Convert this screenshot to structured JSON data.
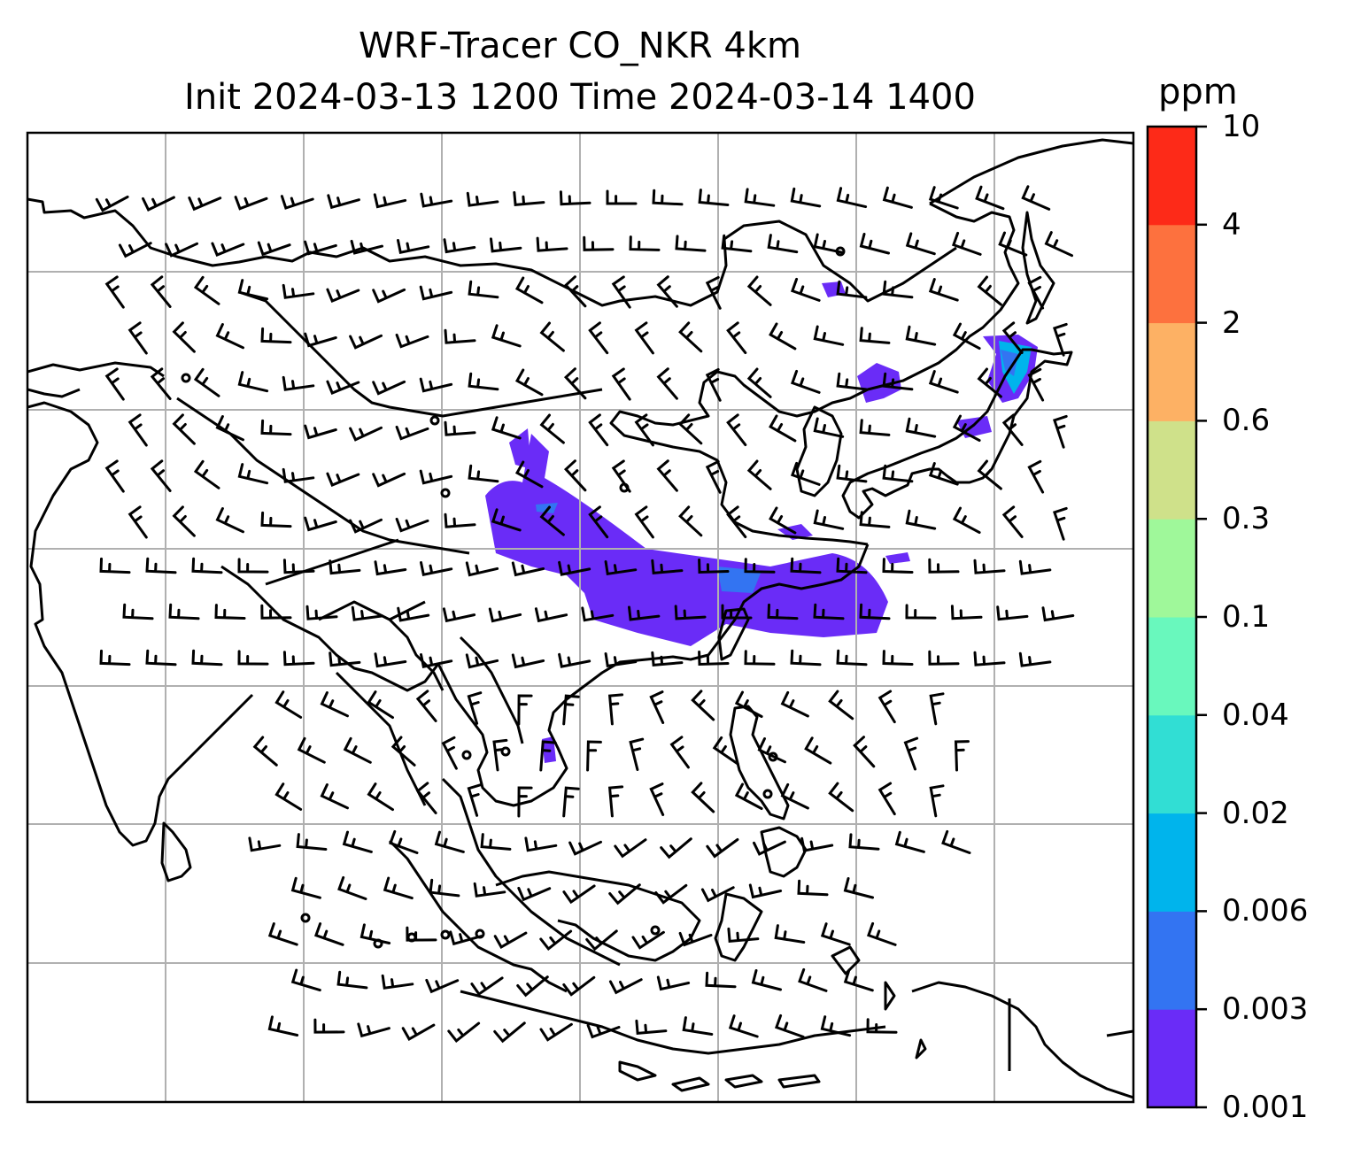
{
  "title_line1": "WRF-Tracer CO_NKR 4km",
  "title_line2": "Init 2024-03-13 1200 Time 2024-03-14 1400",
  "colorbar": {
    "unit": "ppm",
    "levels": [
      "0.001",
      "0.003",
      "0.006",
      "0.02",
      "0.04",
      "0.1",
      "0.3",
      "0.6",
      "2",
      "4",
      "10"
    ],
    "colors": [
      "#6a2cf7",
      "#3374f2",
      "#00b4ec",
      "#31ded4",
      "#69f8bd",
      "#9ff89a",
      "#cfe18a",
      "#fdb164",
      "#fd713e",
      "#fd2a18"
    ]
  },
  "map": {
    "gridlines": true,
    "plume_color": "#6a2cf7",
    "features": [
      "coastlines",
      "country-borders",
      "wind-barbs",
      "tracer-concentration-fill"
    ]
  }
}
